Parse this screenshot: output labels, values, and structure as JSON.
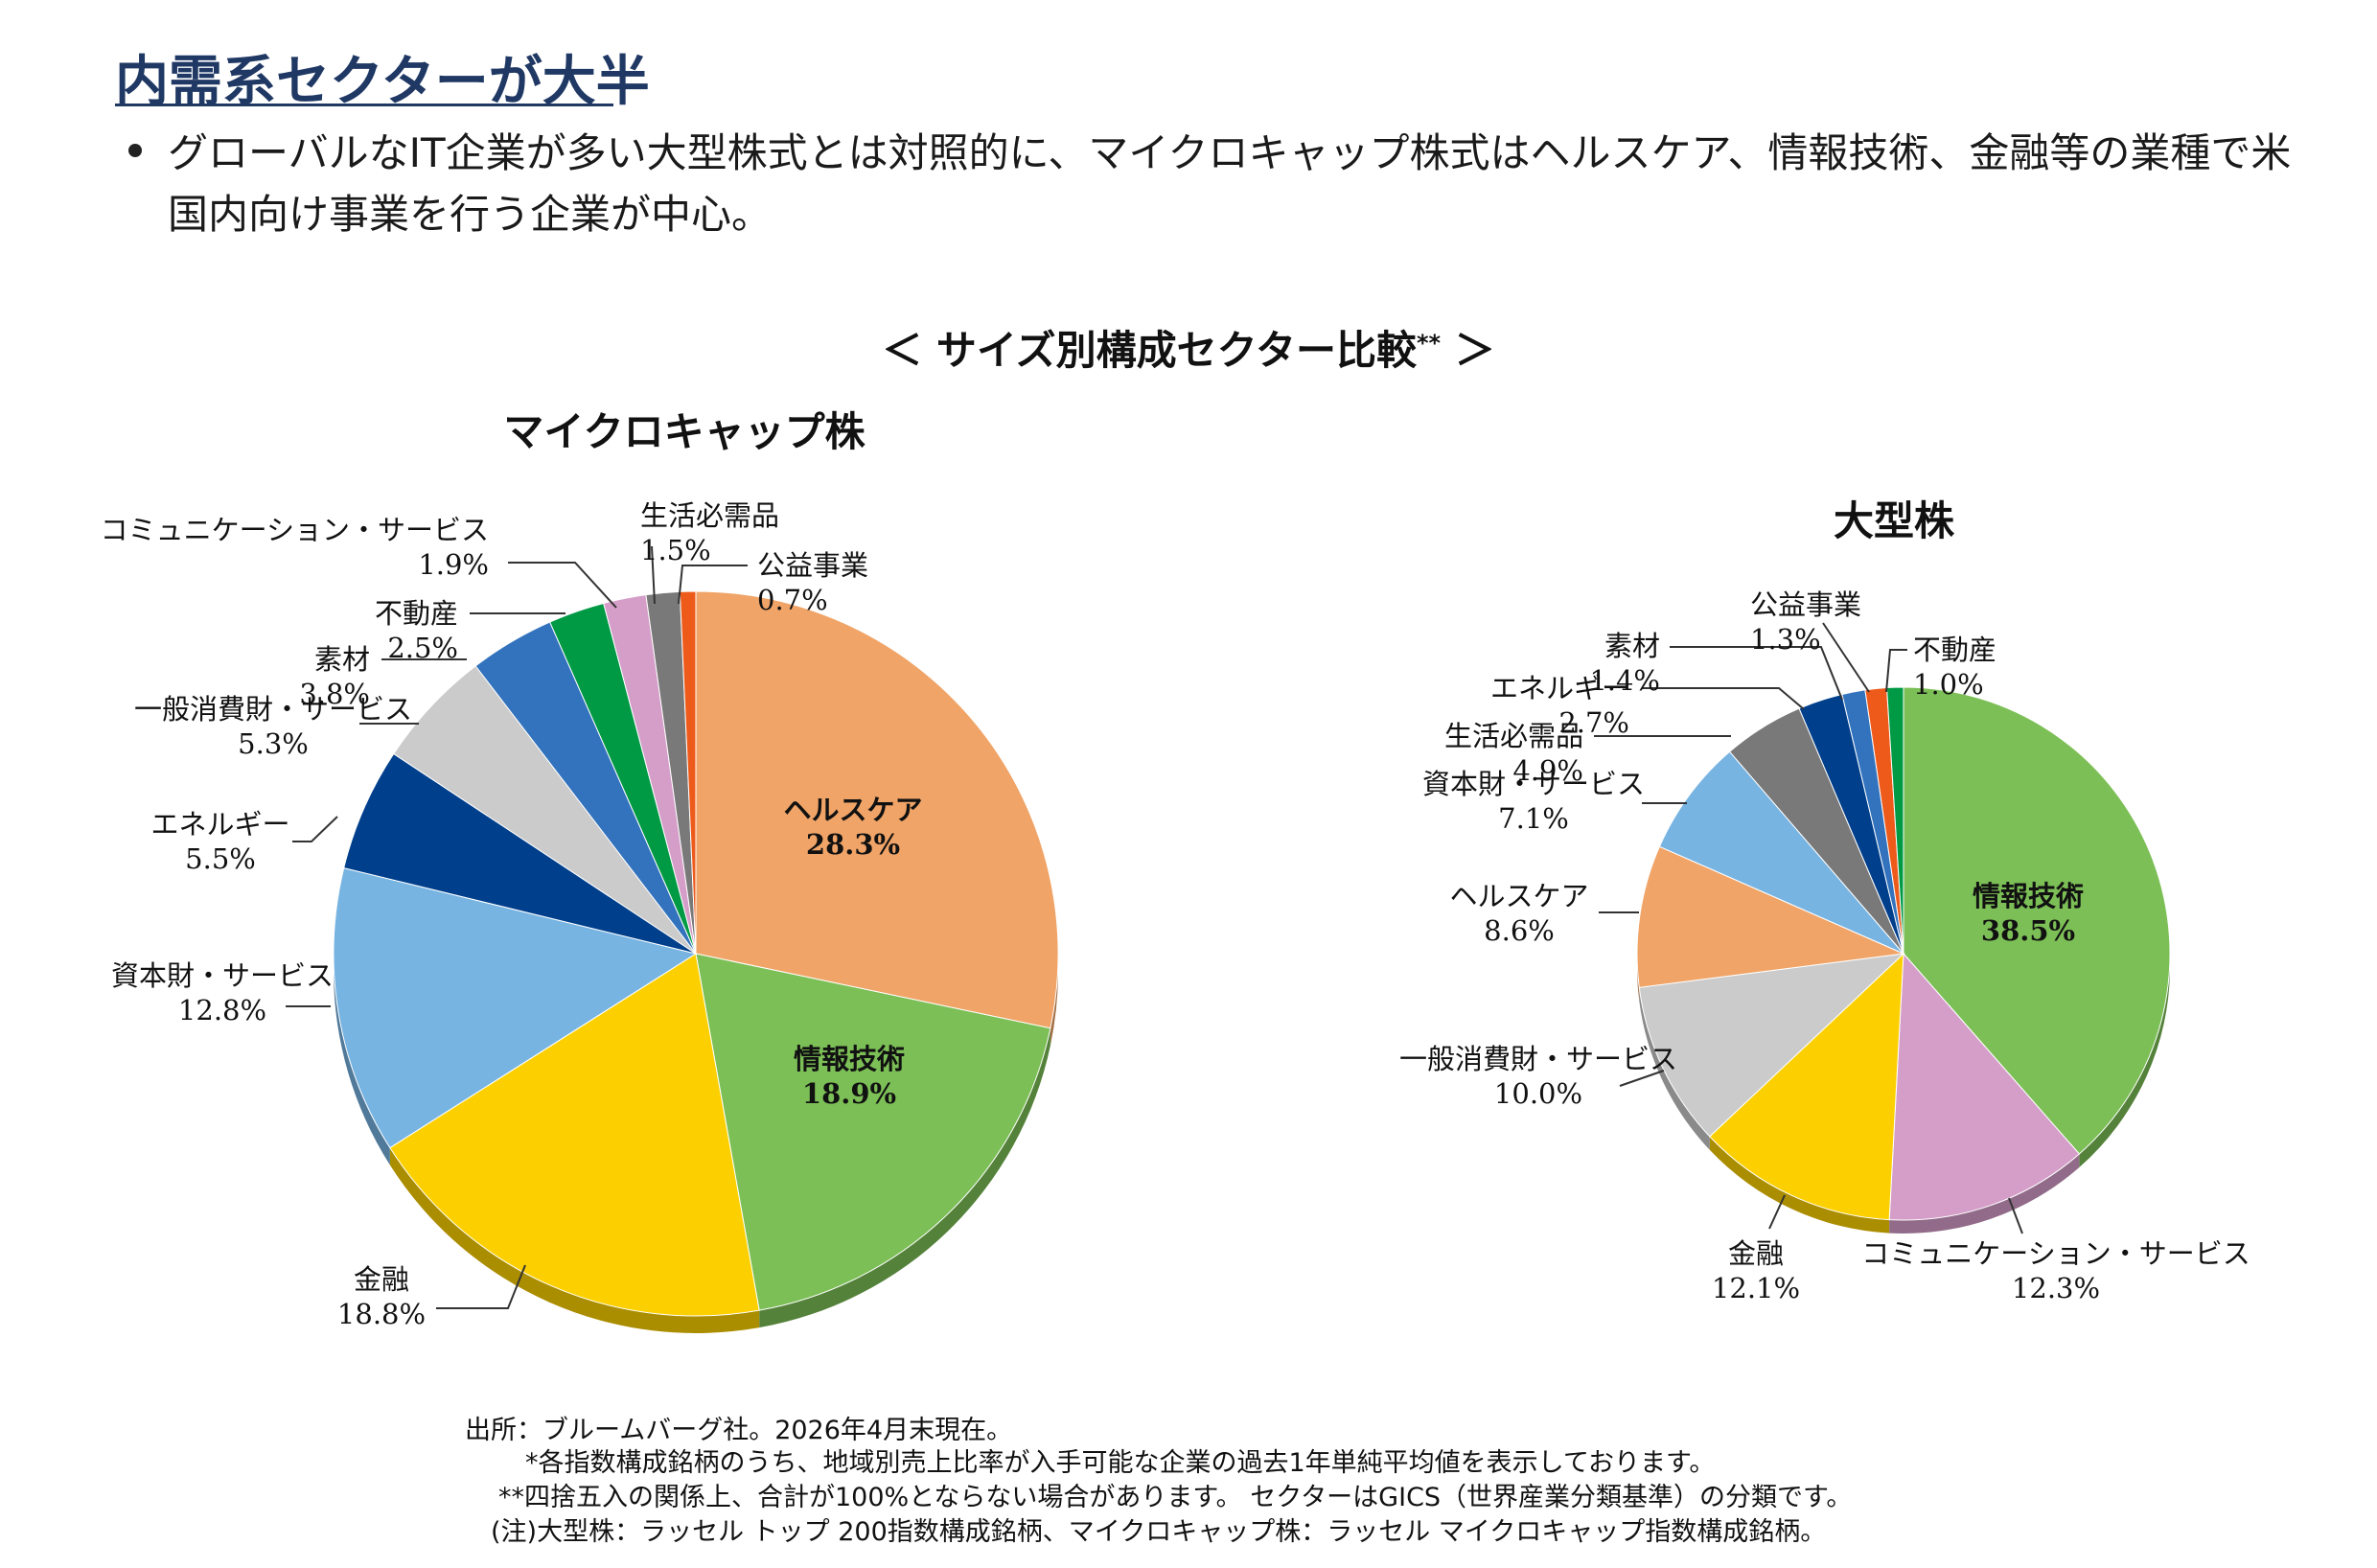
{
  "header": {
    "title": "内需系セクターが大半",
    "bullet": "グローバルなIT企業が多い大型株式とは対照的に、マイクロキャップ株式はヘルスケア、情報技術、金融等の業種で米国内向け事業を行う企業が中心。"
  },
  "chart_title": {
    "main": "＜ サイズ別構成セクター比較",
    "marks": "**",
    "close": " ＞"
  },
  "chart_data": [
    {
      "type": "pie",
      "title": "マイクロキャップ株",
      "slices": [
        {
          "label": "ヘルスケア",
          "value": 28.3,
          "value_text": "28.3%",
          "color": "#f0a467"
        },
        {
          "label": "情報技術",
          "value": 18.9,
          "value_text": "18.9%",
          "color": "#7cbf56"
        },
        {
          "label": "金融",
          "value": 18.8,
          "value_text": "18.8%",
          "color": "#fcd000"
        },
        {
          "label": "資本財・サービス",
          "value": 12.8,
          "value_text": "12.8%",
          "color": "#77b4e2"
        },
        {
          "label": "エネルギー",
          "value": 5.5,
          "value_text": "5.5%",
          "color": "#003f8c"
        },
        {
          "label": "一般消費財・サービス",
          "value": 5.3,
          "value_text": "5.3%",
          "color": "#cbcbcb"
        },
        {
          "label": "素材",
          "value": 3.8,
          "value_text": "3.8%",
          "color": "#3373bd"
        },
        {
          "label": "不動産",
          "value": 2.5,
          "value_text": "2.5%",
          "color": "#009a44"
        },
        {
          "label": "コミュニケーション・サービス",
          "value": 1.9,
          "value_text": "1.9%",
          "color": "#d59ec9"
        },
        {
          "label": "生活必需品",
          "value": 1.5,
          "value_text": "1.5%",
          "color": "#797979"
        },
        {
          "label": "公益事業",
          "value": 0.7,
          "value_text": "0.7%",
          "color": "#ed5a1a"
        }
      ]
    },
    {
      "type": "pie",
      "title": "大型株",
      "slices": [
        {
          "label": "情報技術",
          "value": 38.5,
          "value_text": "38.5%",
          "color": "#7cbf56"
        },
        {
          "label": "コミュニケーション・サービス",
          "value": 12.3,
          "value_text": "12.3%",
          "color": "#d59ec9"
        },
        {
          "label": "金融",
          "value": 12.1,
          "value_text": "12.1%",
          "color": "#fcd000"
        },
        {
          "label": "一般消費財・サービス",
          "value": 10.0,
          "value_text": "10.0%",
          "color": "#cbcbcb"
        },
        {
          "label": "ヘルスケア",
          "value": 8.6,
          "value_text": "8.6%",
          "color": "#f0a467"
        },
        {
          "label": "資本財・サービス",
          "value": 7.1,
          "value_text": "7.1%",
          "color": "#77b4e2"
        },
        {
          "label": "生活必需品",
          "value": 4.9,
          "value_text": "4.9%",
          "color": "#797979"
        },
        {
          "label": "エネルギー",
          "value": 2.7,
          "value_text": "2.7%",
          "color": "#003f8c"
        },
        {
          "label": "素材",
          "value": 1.4,
          "value_text": "1.4%",
          "color": "#3373bd"
        },
        {
          "label": "公益事業",
          "value": 1.3,
          "value_text": "1.3%",
          "color": "#ed5a1a"
        },
        {
          "label": "不動産",
          "value": 1.0,
          "value_text": "1.0%",
          "color": "#009a44"
        }
      ]
    }
  ],
  "notes": {
    "source": "出所：ブルームバーグ社。2026年4月末現在。",
    "note1": "*各指数構成銘柄のうち、地域別売上比率が入手可能な企業の過去1年単純平均値を表示しております。",
    "note2": "**四捨五入の関係上、合計が100%とならない場合があります。 セクターはGICS（世界産業分類基準）の分類です。",
    "note3": "(注)大型株：ラッセル トップ 200指数構成銘柄、マイクロキャップ株：ラッセル マイクロキャップ指数構成銘柄。"
  }
}
